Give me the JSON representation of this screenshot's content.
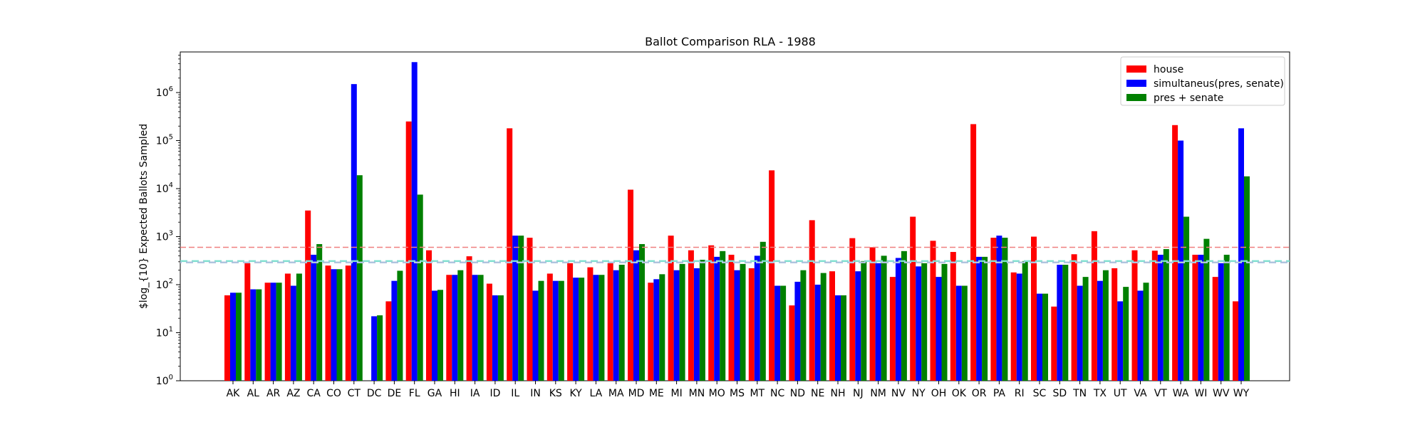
{
  "chart_data": {
    "type": "bar",
    "title": "Ballot Comparison RLA - 1988",
    "xlabel": "",
    "ylabel": "$log_{10} Expected Ballots Sampled",
    "yscale": "log",
    "ylim": [
      1,
      7000000
    ],
    "yticks": [
      1,
      10,
      100,
      1000,
      10000,
      100000,
      1000000
    ],
    "ytick_labels": [
      "10^0",
      "10^1",
      "10^2",
      "10^3",
      "10^4",
      "10^5",
      "10^6"
    ],
    "legend_position": "top-right",
    "grid": false,
    "categories": [
      "AK",
      "AL",
      "AR",
      "AZ",
      "CA",
      "CO",
      "CT",
      "DC",
      "DE",
      "FL",
      "GA",
      "HI",
      "IA",
      "ID",
      "IL",
      "IN",
      "KS",
      "KY",
      "LA",
      "MA",
      "MD",
      "ME",
      "MI",
      "MN",
      "MO",
      "MS",
      "MT",
      "NC",
      "ND",
      "NE",
      "NH",
      "NJ",
      "NM",
      "NV",
      "NY",
      "OH",
      "OK",
      "OR",
      "PA",
      "RI",
      "SC",
      "SD",
      "TN",
      "TX",
      "UT",
      "VA",
      "VT",
      "WA",
      "WI",
      "WV",
      "WY"
    ],
    "series": [
      {
        "name": "house",
        "color": "#ff0000",
        "values": [
          60,
          280,
          110,
          170,
          3500,
          250,
          250,
          null,
          45,
          250000,
          520,
          160,
          390,
          105,
          180000,
          950,
          170,
          280,
          230,
          280,
          9500,
          110,
          1050,
          520,
          660,
          420,
          220,
          24000,
          37,
          2200,
          190,
          930,
          600,
          145,
          2600,
          820,
          480,
          220000,
          950,
          180,
          1000,
          35,
          430,
          1300,
          220,
          520,
          510,
          210000,
          420,
          145,
          45
        ]
      },
      {
        "name": "simultaneus(pres, senate)",
        "color": "#0000ff",
        "values": [
          68,
          80,
          110,
          95,
          420,
          210,
          1500000,
          22,
          120,
          4300000,
          75,
          160,
          160,
          60,
          1050,
          75,
          120,
          140,
          160,
          200,
          520,
          130,
          200,
          220,
          380,
          200,
          400,
          95,
          115,
          100,
          60,
          190,
          280,
          360,
          240,
          145,
          95,
          380,
          1050,
          170,
          65,
          260,
          95,
          120,
          45,
          75,
          420,
          100000,
          420,
          280,
          180000
        ]
      },
      {
        "name": "pres + senate",
        "color": "#008000",
        "values": [
          68,
          80,
          110,
          170,
          700,
          210,
          19000,
          23,
          195,
          7500,
          78,
          200,
          160,
          60,
          1050,
          120,
          120,
          140,
          160,
          260,
          700,
          165,
          270,
          330,
          500,
          270,
          780,
          95,
          200,
          175,
          60,
          310,
          400,
          500,
          280,
          270,
          95,
          380,
          950,
          310,
          65,
          260,
          145,
          200,
          90,
          110,
          550,
          2600,
          900,
          420,
          18000
        ]
      }
    ],
    "reference_lines": [
      {
        "value": 600,
        "color": "#f08080",
        "style": "dashed"
      },
      {
        "value": 310,
        "color": "#7fe0d0",
        "style": "dashed"
      },
      {
        "value": 290,
        "color": "#b0c4de",
        "style": "dashed"
      }
    ]
  }
}
